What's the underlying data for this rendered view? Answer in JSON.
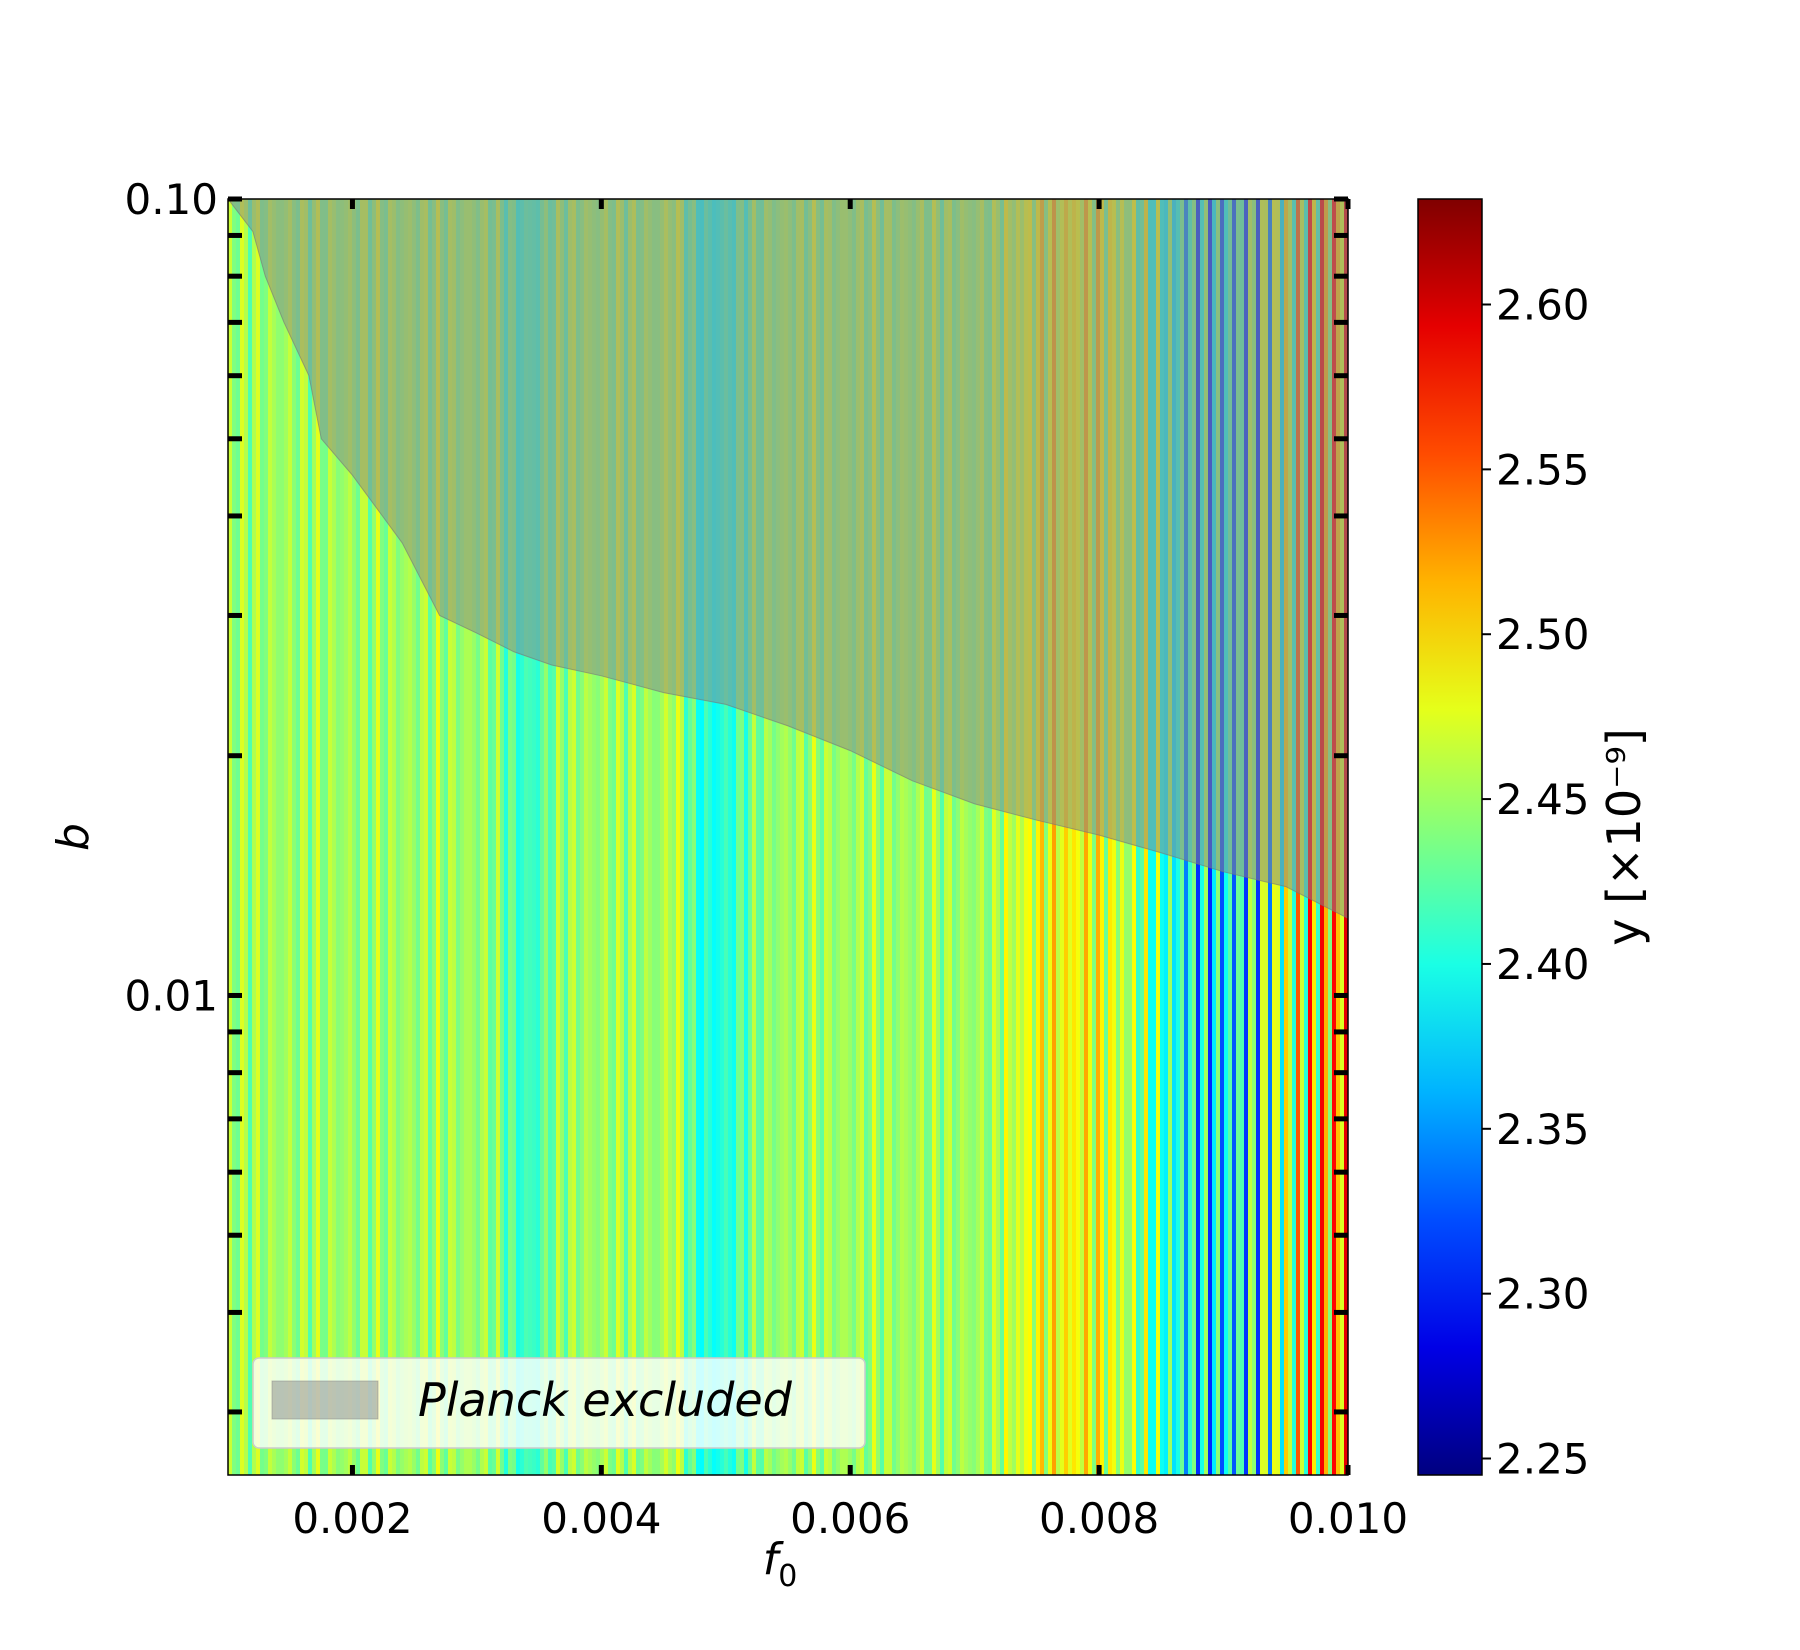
{
  "chart_data": {
    "type": "heatmap",
    "title": "",
    "xlabel": "f",
    "xlabel_sub": "0",
    "ylabel": "b",
    "x_scale": "linear",
    "y_scale": "log",
    "xlim": [
      0.001,
      0.01
    ],
    "ylim": [
      0.0025,
      0.1
    ],
    "x_ticks": [
      0.002,
      0.004,
      0.006,
      0.008,
      0.01
    ],
    "x_tick_labels": [
      "0.002",
      "0.004",
      "0.006",
      "0.008",
      "0.010"
    ],
    "y_ticks": [
      0.01,
      0.1
    ],
    "y_tick_labels": [
      "0.01",
      "0.10"
    ],
    "y_minor_ticks": [
      0.003,
      0.004,
      0.005,
      0.006,
      0.007,
      0.008,
      0.009,
      0.02,
      0.03,
      0.04,
      0.05,
      0.06,
      0.07,
      0.08,
      0.09
    ],
    "colorbar": {
      "label": "y [×10⁻⁹]",
      "colormap": "jet",
      "range": [
        2.245,
        2.632
      ],
      "ticks": [
        2.25,
        2.3,
        2.35,
        2.4,
        2.45,
        2.5,
        2.55,
        2.6
      ],
      "tick_labels": [
        "2.25",
        "2.30",
        "2.35",
        "2.40",
        "2.45",
        "2.50",
        "2.55",
        "2.60"
      ]
    },
    "background_value": 2.45,
    "features": [
      {
        "f0_center": 0.0049,
        "f0_width": 0.0003,
        "value": 2.4,
        "note": "cyan band"
      },
      {
        "f0_center": 0.0046,
        "f0_width": 0.0001,
        "value": 2.48,
        "note": "yellow stripe"
      },
      {
        "f0_center": 0.0034,
        "f0_width": 0.0002,
        "value": 2.41,
        "note": "teal stripe"
      }
    ],
    "oscillation_onset_f0": 0.0072,
    "oscillation_amplitude": 0.15,
    "excluded_region": {
      "label": "Planck excluded",
      "boundary": [
        [
          0.001,
          0.1
        ],
        [
          0.0012,
          0.091
        ],
        [
          0.0013,
          0.08
        ],
        [
          0.00145,
          0.07
        ],
        [
          0.00165,
          0.06
        ],
        [
          0.00175,
          0.05
        ],
        [
          0.002,
          0.045
        ],
        [
          0.0024,
          0.037
        ],
        [
          0.0027,
          0.03
        ],
        [
          0.003,
          0.0285
        ],
        [
          0.0033,
          0.027
        ],
        [
          0.0036,
          0.026
        ],
        [
          0.004,
          0.0252
        ],
        [
          0.0045,
          0.024
        ],
        [
          0.005,
          0.0232
        ],
        [
          0.0055,
          0.0218
        ],
        [
          0.006,
          0.0203
        ],
        [
          0.0065,
          0.0186
        ],
        [
          0.007,
          0.0174
        ],
        [
          0.0075,
          0.0166
        ],
        [
          0.008,
          0.0159
        ],
        [
          0.0085,
          0.0151
        ],
        [
          0.009,
          0.0143
        ],
        [
          0.0095,
          0.0137
        ],
        [
          0.01,
          0.0125
        ]
      ]
    },
    "legend": {
      "position": "lower-left",
      "entries": [
        "Planck excluded"
      ]
    },
    "grid": false
  }
}
